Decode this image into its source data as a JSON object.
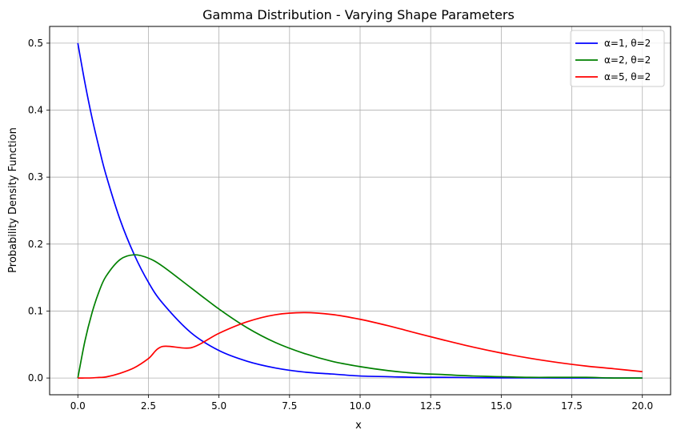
{
  "chart_data": {
    "type": "line",
    "title": "Gamma Distribution - Varying Shape Parameters",
    "xlabel": "x",
    "ylabel": "Probability Density Function",
    "xlim": [
      -1,
      21
    ],
    "ylim": [
      -0.025,
      0.525
    ],
    "x_ticks": [
      0.0,
      2.5,
      5.0,
      7.5,
      10.0,
      12.5,
      15.0,
      17.5,
      20.0
    ],
    "x_tick_labels": [
      "0.0",
      "2.5",
      "5.0",
      "7.5",
      "10.0",
      "12.5",
      "15.0",
      "17.5",
      "20.0"
    ],
    "y_ticks": [
      0.0,
      0.1,
      0.2,
      0.3,
      0.4,
      0.5
    ],
    "y_tick_labels": [
      "0.0",
      "0.1",
      "0.2",
      "0.3",
      "0.4",
      "0.5"
    ],
    "grid": true,
    "legend_position": "top-right",
    "x": [
      0,
      0.25,
      0.5,
      0.75,
      1,
      1.5,
      2,
      2.5,
      3,
      4,
      5,
      6,
      7,
      8,
      9,
      10,
      11,
      12,
      13,
      14,
      15,
      16,
      17,
      18,
      19,
      20
    ],
    "series": [
      {
        "name": "α=1, θ=2",
        "color": "#0000ff",
        "values": [
          0.5,
          0.441,
          0.389,
          0.344,
          0.303,
          0.236,
          0.184,
          0.143,
          0.112,
          0.068,
          0.041,
          0.025,
          0.015,
          0.009,
          0.006,
          0.003,
          0.002,
          0.001,
          0.001,
          0.0005,
          0.0003,
          0.0002,
          0.0001,
          0.0001,
          0.0,
          0.0
        ]
      },
      {
        "name": "α=2, θ=2",
        "color": "#008000",
        "values": [
          0.0,
          0.055,
          0.097,
          0.129,
          0.152,
          0.177,
          0.184,
          0.179,
          0.167,
          0.135,
          0.103,
          0.075,
          0.053,
          0.037,
          0.025,
          0.017,
          0.011,
          0.007,
          0.005,
          0.003,
          0.002,
          0.001,
          0.001,
          0.001,
          0.0,
          0.0
        ]
      },
      {
        "name": "α=5, θ=2",
        "color": "#ff0000",
        "values": [
          0.0,
          1e-05,
          0.0002,
          0.0009,
          0.0016,
          0.0071,
          0.0153,
          0.029,
          0.0471,
          0.0451,
          0.0668,
          0.084,
          0.0945,
          0.0977,
          0.0949,
          0.0877,
          0.078,
          0.067,
          0.0563,
          0.0462,
          0.0373,
          0.0296,
          0.0232,
          0.0179,
          0.0138,
          0.0095
        ]
      }
    ]
  }
}
